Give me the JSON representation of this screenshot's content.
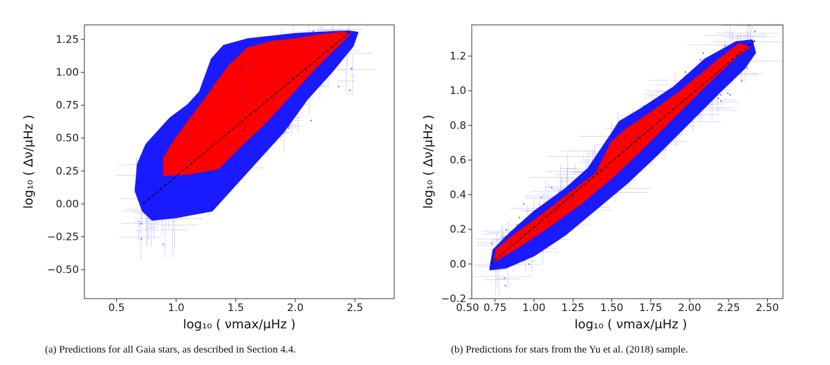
{
  "captions": {
    "a": "(a) Predictions for all Gaia stars, as described in Section 4.4.",
    "b": "(b) Predictions for stars from the Yu et al. (2018) sample."
  },
  "colors": {
    "outer": "#1a1aff",
    "inner": "#ff0000",
    "errorbar": "#8888ee",
    "line": "#000000"
  },
  "chart_data": [
    {
      "type": "scatter",
      "xlabel": "log₁₀ ( νmax/μHz )",
      "ylabel": "log₁₀ ( Δν/μHz )",
      "xlim": [
        0.23,
        2.83
      ],
      "ylim": [
        -0.72,
        1.36
      ],
      "x_ticks": [
        "0.5",
        "1.0",
        "1.5",
        "2.0",
        "2.5"
      ],
      "x_tick_values": [
        0.5,
        1.0,
        1.5,
        2.0,
        2.5
      ],
      "y_ticks": [
        "1.25",
        "1.00",
        "0.75",
        "0.50",
        "0.25",
        "0.00",
        "−0.25",
        "−0.50"
      ],
      "y_tick_values": [
        1.25,
        1.0,
        0.75,
        0.5,
        0.25,
        0.0,
        -0.25,
        -0.5
      ],
      "reference_line": {
        "style": "dashed",
        "x": [
          0.72,
          2.45
        ],
        "y": [
          0.0,
          1.3
        ]
      },
      "series": [
        {
          "layer": "blue",
          "polygon": [
            [
              0.72,
              -0.05
            ],
            [
              0.8,
              -0.12
            ],
            [
              1.0,
              -0.1
            ],
            [
              1.3,
              -0.05
            ],
            [
              1.5,
              0.15
            ],
            [
              1.7,
              0.35
            ],
            [
              1.9,
              0.55
            ],
            [
              2.1,
              0.8
            ],
            [
              2.3,
              1.0
            ],
            [
              2.48,
              1.2
            ],
            [
              2.52,
              1.3
            ],
            [
              2.45,
              1.31
            ],
            [
              2.2,
              1.3
            ],
            [
              2.0,
              1.29
            ],
            [
              1.8,
              1.27
            ],
            [
              1.6,
              1.25
            ],
            [
              1.4,
              1.2
            ],
            [
              1.3,
              1.1
            ],
            [
              1.2,
              0.85
            ],
            [
              1.1,
              0.75
            ],
            [
              0.95,
              0.65
            ],
            [
              0.85,
              0.55
            ],
            [
              0.75,
              0.45
            ],
            [
              0.68,
              0.3
            ],
            [
              0.66,
              0.1
            ]
          ]
        },
        {
          "layer": "red",
          "polygon": [
            [
              0.9,
              0.22
            ],
            [
              1.1,
              0.23
            ],
            [
              1.35,
              0.27
            ],
            [
              1.55,
              0.45
            ],
            [
              1.75,
              0.62
            ],
            [
              1.95,
              0.82
            ],
            [
              2.15,
              1.02
            ],
            [
              2.35,
              1.2
            ],
            [
              2.45,
              1.29
            ],
            [
              2.4,
              1.3
            ],
            [
              2.2,
              1.28
            ],
            [
              2.0,
              1.25
            ],
            [
              1.8,
              1.23
            ],
            [
              1.6,
              1.18
            ],
            [
              1.45,
              1.05
            ],
            [
              1.35,
              0.93
            ],
            [
              1.25,
              0.8
            ],
            [
              1.1,
              0.62
            ],
            [
              0.98,
              0.47
            ],
            [
              0.9,
              0.35
            ]
          ]
        }
      ]
    },
    {
      "type": "scatter",
      "xlabel": "log₁₀ ( νmax/μHz )",
      "ylabel": "log₁₀ ( Δν/μHz )",
      "xlim": [
        0.6,
        2.6
      ],
      "ylim": [
        -0.2,
        1.38
      ],
      "x_ticks": [
        "0.50",
        "0.75",
        "1.00",
        "1.25",
        "1.50",
        "1.75",
        "2.00",
        "2.25",
        "2.50"
      ],
      "x_tick_values": [
        0.5,
        0.75,
        1.0,
        1.25,
        1.5,
        1.75,
        2.0,
        2.25,
        2.5
      ],
      "y_ticks": [
        "1.2",
        "1.0",
        "0.8",
        "0.6",
        "0.4",
        "0.2",
        "0.0",
        "−0.2"
      ],
      "y_tick_values": [
        1.2,
        1.0,
        0.8,
        0.6,
        0.4,
        0.2,
        0.0,
        -0.2
      ],
      "reference_line": {
        "style": "dashed",
        "x": [
          0.72,
          2.42
        ],
        "y": [
          0.0,
          1.29
        ]
      },
      "series": [
        {
          "layer": "blue",
          "polygon": [
            [
              0.72,
              -0.03
            ],
            [
              0.82,
              -0.02
            ],
            [
              1.0,
              0.05
            ],
            [
              1.2,
              0.17
            ],
            [
              1.4,
              0.32
            ],
            [
              1.6,
              0.47
            ],
            [
              1.8,
              0.64
            ],
            [
              2.0,
              0.82
            ],
            [
              2.2,
              1.0
            ],
            [
              2.35,
              1.13
            ],
            [
              2.42,
              1.22
            ],
            [
              2.4,
              1.29
            ],
            [
              2.3,
              1.28
            ],
            [
              2.1,
              1.18
            ],
            [
              1.9,
              1.02
            ],
            [
              1.7,
              0.9
            ],
            [
              1.55,
              0.82
            ],
            [
              1.5,
              0.75
            ],
            [
              1.35,
              0.55
            ],
            [
              1.2,
              0.43
            ],
            [
              1.0,
              0.3
            ],
            [
              0.85,
              0.18
            ],
            [
              0.74,
              0.08
            ]
          ]
        },
        {
          "layer": "red",
          "polygon": [
            [
              0.75,
              0.02
            ],
            [
              0.9,
              0.1
            ],
            [
              1.1,
              0.22
            ],
            [
              1.3,
              0.35
            ],
            [
              1.5,
              0.5
            ],
            [
              1.7,
              0.67
            ],
            [
              1.9,
              0.85
            ],
            [
              2.1,
              1.03
            ],
            [
              2.3,
              1.2
            ],
            [
              2.38,
              1.25
            ],
            [
              2.32,
              1.27
            ],
            [
              2.15,
              1.15
            ],
            [
              1.95,
              1.0
            ],
            [
              1.75,
              0.87
            ],
            [
              1.6,
              0.78
            ],
            [
              1.5,
              0.7
            ],
            [
              1.4,
              0.52
            ],
            [
              1.25,
              0.42
            ],
            [
              1.05,
              0.28
            ],
            [
              0.88,
              0.17
            ],
            [
              0.76,
              0.08
            ]
          ]
        }
      ]
    }
  ]
}
